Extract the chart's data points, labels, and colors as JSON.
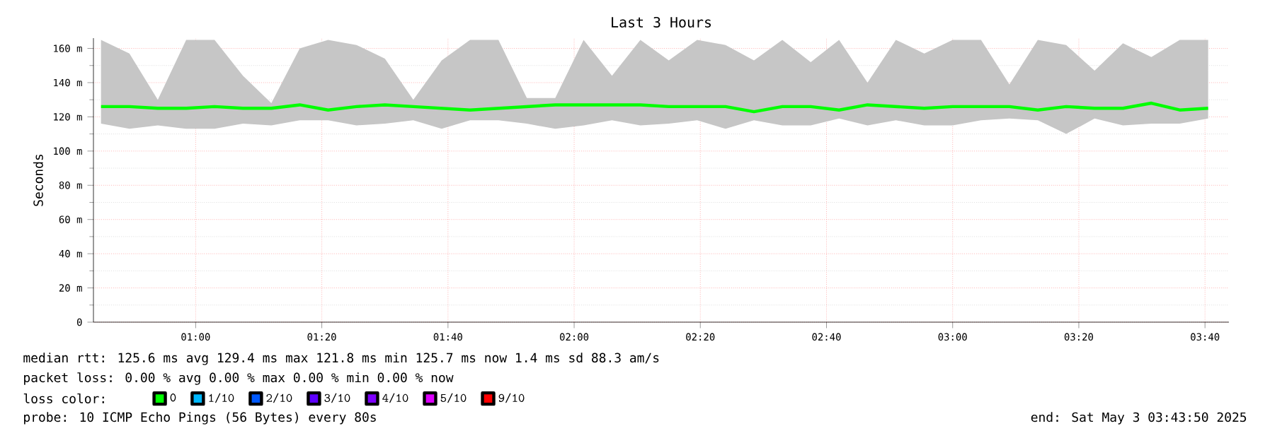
{
  "chart_data": {
    "type": "line",
    "title": "Last 3 Hours",
    "ylabel": "Seconds",
    "x": [
      0.75,
      0.825,
      0.9,
      0.975,
      1.05,
      1.125,
      1.2,
      1.275,
      1.35,
      1.425,
      1.5,
      1.575,
      1.65,
      1.725,
      1.8,
      1.875,
      1.95,
      2.025,
      2.1,
      2.175,
      2.25,
      2.325,
      2.4,
      2.475,
      2.55,
      2.625,
      2.7,
      2.775,
      2.85,
      2.925,
      3.0,
      3.075,
      3.15,
      3.225,
      3.3,
      3.375,
      3.45,
      3.525,
      3.6,
      3.675
    ],
    "series": [
      {
        "name": "0",
        "color": "#00ff00",
        "values": [
          126,
          126,
          125,
          125,
          126,
          125,
          125,
          127,
          124,
          126,
          127,
          126,
          125,
          124,
          125,
          126,
          127,
          127,
          127,
          127,
          126,
          126,
          126,
          123,
          126,
          126,
          124,
          127,
          126,
          125,
          126,
          126,
          126,
          124,
          126,
          125,
          125,
          128,
          124,
          125
        ],
        "upper": [
          165,
          157,
          130,
          165,
          165,
          144,
          128,
          160,
          165,
          162,
          154,
          130,
          153,
          165,
          165,
          131,
          131,
          165,
          144,
          165,
          153,
          165,
          162,
          153,
          165,
          152,
          165,
          140,
          165,
          157,
          165,
          165,
          139,
          165,
          162,
          147,
          163,
          155,
          165,
          165
        ],
        "lower": [
          116,
          113,
          115,
          113,
          113,
          116,
          115,
          118,
          118,
          115,
          116,
          118,
          113,
          118,
          118,
          116,
          113,
          115,
          118,
          115,
          116,
          118,
          113,
          118,
          115,
          115,
          119,
          115,
          118,
          115,
          115,
          118,
          119,
          118,
          110,
          119,
          115,
          116,
          116,
          119
        ]
      },
      {
        "name": "1/10",
        "color": "#00b8ff",
        "values": [
          null,
          null,
          null,
          null,
          null,
          null,
          null,
          null,
          null,
          null,
          null,
          null,
          null,
          null,
          null,
          null,
          null,
          null,
          null,
          null,
          null,
          null,
          null,
          null,
          null,
          null,
          null,
          null,
          null,
          null,
          null,
          null,
          null,
          null,
          null,
          null,
          null,
          null,
          null,
          null
        ]
      },
      {
        "name": "2/10",
        "color": "#0059ff",
        "values": [
          null,
          null,
          null,
          null,
          null,
          null,
          null,
          null,
          null,
          null,
          null,
          null,
          null,
          null,
          null,
          null,
          null,
          null,
          null,
          null,
          null,
          null,
          null,
          null,
          null,
          null,
          null,
          null,
          null,
          null,
          null,
          null,
          null,
          null,
          null,
          null,
          null,
          null,
          null,
          null
        ]
      },
      {
        "name": "3/10",
        "color": "#5e00ff",
        "values": [
          null,
          null,
          null,
          null,
          null,
          null,
          null,
          null,
          null,
          null,
          null,
          null,
          null,
          null,
          null,
          null,
          null,
          null,
          null,
          null,
          null,
          null,
          null,
          null,
          null,
          null,
          null,
          null,
          null,
          null,
          null,
          null,
          null,
          null,
          null,
          null,
          null,
          null,
          null,
          null
        ]
      },
      {
        "name": "4/10",
        "color": "#7e00ff",
        "values": [
          null,
          null,
          null,
          null,
          null,
          null,
          null,
          null,
          null,
          null,
          null,
          null,
          null,
          null,
          null,
          null,
          null,
          null,
          null,
          null,
          null,
          null,
          null,
          null,
          null,
          null,
          null,
          null,
          null,
          null,
          null,
          null,
          null,
          null,
          null,
          null,
          null,
          null,
          null,
          null
        ]
      },
      {
        "name": "5/10",
        "color": "#dd00ff",
        "values": [
          null,
          null,
          null,
          null,
          null,
          null,
          null,
          null,
          null,
          null,
          null,
          null,
          null,
          null,
          null,
          null,
          null,
          null,
          null,
          null,
          null,
          null,
          null,
          null,
          null,
          null,
          null,
          null,
          null,
          null,
          null,
          null,
          null,
          null,
          null,
          null,
          null,
          null,
          null,
          null
        ]
      },
      {
        "name": "9/10",
        "color": "#ff0000",
        "values": [
          null,
          null,
          null,
          null,
          null,
          null,
          null,
          null,
          null,
          null,
          null,
          null,
          null,
          null,
          null,
          null,
          null,
          null,
          null,
          null,
          null,
          null,
          null,
          null,
          null,
          null,
          null,
          null,
          null,
          null,
          null,
          null,
          null,
          null,
          null,
          null,
          null,
          null,
          null,
          null
        ]
      }
    ],
    "xlim": [
      0.73,
      3.73
    ],
    "xticks": [
      {
        "value": 1.0,
        "label": "01:00"
      },
      {
        "value": 1.3333,
        "label": "01:20"
      },
      {
        "value": 1.6667,
        "label": "01:40"
      },
      {
        "value": 2.0,
        "label": "02:00"
      },
      {
        "value": 2.3333,
        "label": "02:20"
      },
      {
        "value": 2.6667,
        "label": "02:40"
      },
      {
        "value": 3.0,
        "label": "03:00"
      },
      {
        "value": 3.3333,
        "label": "03:20"
      },
      {
        "value": 3.6667,
        "label": "03:40"
      }
    ],
    "ylim": [
      0,
      166
    ],
    "yticks": [
      0,
      {
        "value": 20,
        "label": "20 m"
      },
      {
        "value": 40,
        "label": "40 m"
      },
      {
        "value": 60,
        "label": "60 m"
      },
      {
        "value": 80,
        "label": "80 m"
      },
      {
        "value": 100,
        "label": "100 m"
      },
      {
        "value": 120,
        "label": "120 m"
      },
      {
        "value": 140,
        "label": "140 m"
      },
      {
        "value": 160,
        "label": "160 m"
      }
    ],
    "grid": true,
    "legend": "bottom",
    "legend_title": "loss color:",
    "annotations": [
      "median rtt:  125.6 ms avg  129.4 ms max  121.8 ms min  125.7 ms now  1.4 ms sd  88.3   am/s",
      "packet loss: 0.00 % avg  0.00 % max  0.00 % min  0.00 % now",
      "probe:       10 ICMP Echo Pings (56 Bytes) every 80s",
      "end: Sat May  3 03:43:50 2025"
    ]
  }
}
